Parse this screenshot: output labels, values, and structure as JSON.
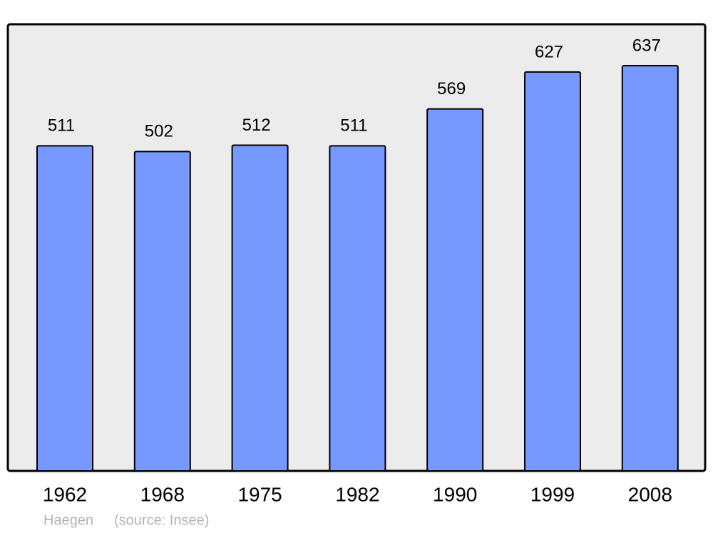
{
  "chart_data": {
    "type": "bar",
    "categories": [
      "1962",
      "1968",
      "1975",
      "1982",
      "1990",
      "1999",
      "2008"
    ],
    "values": [
      511,
      502,
      512,
      511,
      569,
      627,
      637
    ],
    "color": "#7799ff",
    "annotations": [
      "Haegen",
      "(source: Insee)"
    ]
  }
}
